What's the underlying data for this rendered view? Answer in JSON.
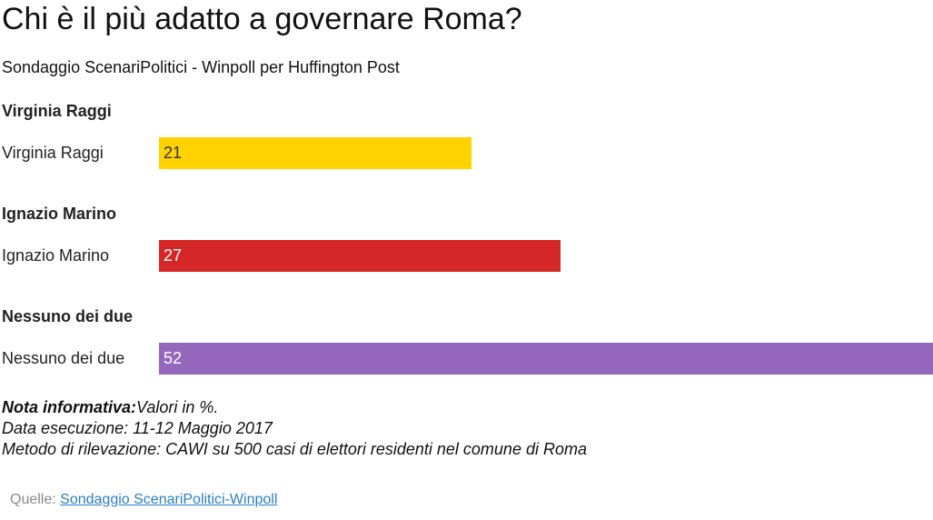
{
  "chart_data": {
    "type": "bar",
    "orientation": "horizontal",
    "title": "Chi è il più adatto a governare Roma?",
    "subtitle": "Sondaggio ScenariPolitici - Winpoll per Huffington Post",
    "xlim": [
      0,
      52
    ],
    "groups": [
      {
        "heading": "Virginia Raggi",
        "label": "Virginia Raggi",
        "value": 21,
        "color": "#ffd200",
        "value_color": "#333333"
      },
      {
        "heading": "Ignazio Marino",
        "label": "Ignazio Marino",
        "value": 27,
        "color": "#d62728",
        "value_color": "#ffffff"
      },
      {
        "heading": "Nessuno dei due",
        "label": "Nessuno dei due",
        "value": 52,
        "color": "#9467bd",
        "value_color": "#ffffff"
      }
    ]
  },
  "notes": {
    "label": "Nota informativa:",
    "text": "Valori in %.",
    "date_line": "Data esecuzione: 11-12 Maggio 2017",
    "method_line": "Metodo di rilevazione: CAWI su 500 casi di elettori residenti nel comune di Roma"
  },
  "sources": {
    "label": "Quelle:",
    "link_text": "Sondaggio ScenariPolitici-Winpoll"
  }
}
